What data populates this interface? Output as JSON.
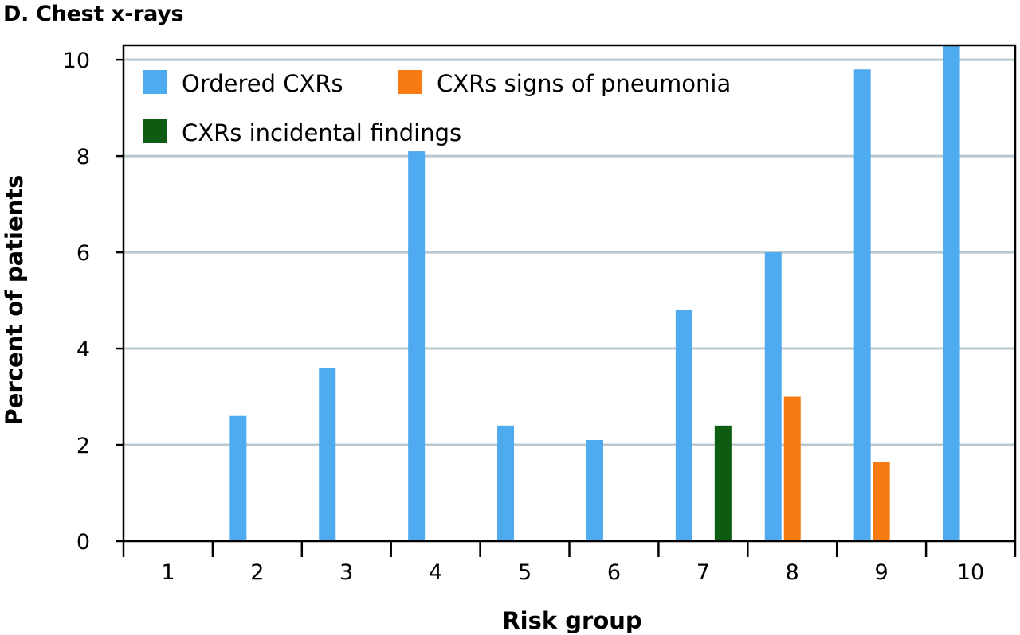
{
  "title": "D. Chest x-rays",
  "chart_data": {
    "type": "bar",
    "title": "D. Chest x-rays",
    "xlabel": "Risk group",
    "ylabel": "Percent of patients",
    "categories": [
      "1",
      "2",
      "3",
      "4",
      "5",
      "6",
      "7",
      "8",
      "9",
      "10"
    ],
    "ylim": [
      0,
      10.3
    ],
    "yticks": [
      0,
      2,
      4,
      6,
      8,
      10
    ],
    "grid": true,
    "legend_position": "top-left",
    "series": [
      {
        "name": "Ordered CXRs",
        "color": "#4fabf0",
        "values": [
          0,
          2.6,
          3.6,
          8.1,
          2.4,
          2.1,
          4.8,
          6.0,
          9.8,
          10.3
        ]
      },
      {
        "name": "CXRs signs of pneumonia",
        "color": "#f77a12",
        "values": [
          0,
          0,
          0,
          0,
          0,
          0,
          0,
          3.0,
          1.65,
          0
        ]
      },
      {
        "name": "CXRs incidental findings",
        "color": "#0d5c12",
        "values": [
          0,
          0,
          0,
          0,
          0,
          0,
          2.4,
          0,
          0,
          0
        ]
      }
    ]
  }
}
